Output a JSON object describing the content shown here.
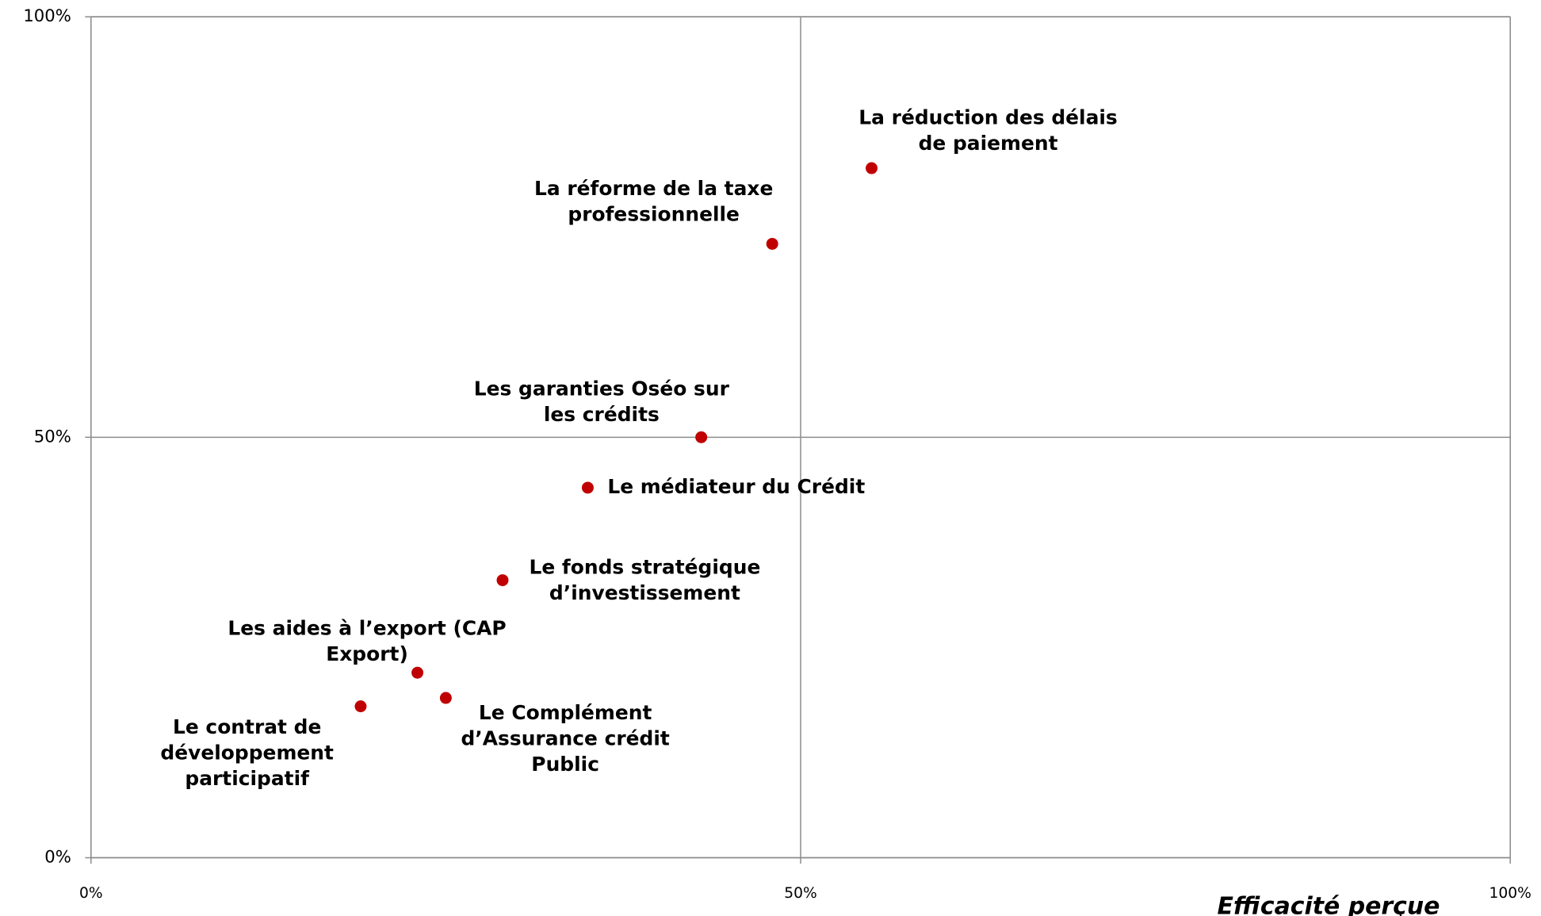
{
  "chart_data": {
    "type": "scatter",
    "x_label": "Efficacité perçue",
    "x": [
      55,
      48,
      43,
      35,
      29,
      23,
      25,
      19
    ],
    "values": [
      82,
      73,
      50,
      44,
      33,
      22,
      19,
      18
    ],
    "labels": [
      [
        "La réduction des délais",
        "de paiement"
      ],
      [
        "La réforme de la taxe",
        "professionnelle"
      ],
      [
        "Les garanties Oséo sur",
        "les crédits"
      ],
      [
        "Le médiateur du Crédit"
      ],
      [
        "Le fonds stratégique",
        "d’investissement"
      ],
      [
        "Les aides à l’export (CAP",
        "Export)"
      ],
      [
        "Le Complément",
        "d’Assurance crédit",
        "Public"
      ],
      [
        "Le contrat de",
        "développement",
        "participatif"
      ]
    ],
    "color": "#c00000",
    "xlim": [
      0,
      100
    ],
    "ylim": [
      0,
      100
    ],
    "xticks": [
      {
        "value": 0,
        "label": "0%"
      },
      {
        "value": 50,
        "label": "50%"
      },
      {
        "value": 100,
        "label": "100%"
      }
    ],
    "yticks": [
      {
        "value": 0,
        "label": "0%"
      },
      {
        "value": 50,
        "label": "50%"
      },
      {
        "value": 100,
        "label": "100%"
      }
    ],
    "grid": true
  }
}
